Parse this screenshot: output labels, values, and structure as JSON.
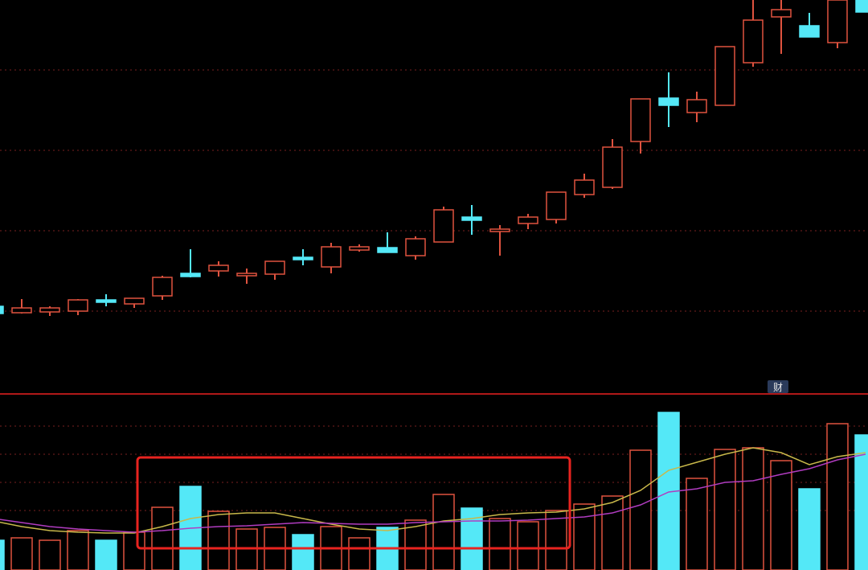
{
  "chart_data": [
    {
      "type": "candlestick",
      "annotation": "财",
      "ylim": [
        0,
        490
      ],
      "up_color": "#e0533f",
      "down_color": "#54e8f7",
      "open": [
        109,
        101,
        102,
        103,
        117,
        112,
        122,
        150,
        153,
        147,
        149,
        170,
        158,
        179,
        182,
        172,
        189,
        220,
        202,
        212,
        217,
        248,
        257,
        314,
        368,
        350,
        359,
        412,
        469,
        458,
        437,
        490
      ],
      "high": [
        110,
        118,
        109,
        118,
        124,
        119,
        147,
        180,
        165,
        156,
        165,
        180,
        188,
        186,
        201,
        196,
        233,
        235,
        210,
        224,
        251,
        274,
        317,
        367,
        400,
        376,
        432,
        490,
        490,
        474,
        490,
        490
      ],
      "low": [
        100,
        100,
        97,
        98,
        109,
        107,
        117,
        145,
        146,
        137,
        142,
        160,
        150,
        177,
        176,
        167,
        189,
        198,
        172,
        205,
        212,
        244,
        255,
        299,
        332,
        338,
        359,
        407,
        423,
        444,
        430,
        475
      ],
      "close": [
        100,
        107,
        107,
        117,
        114,
        119,
        145,
        146,
        160,
        150,
        165,
        167,
        183,
        183,
        176,
        193,
        229,
        216,
        205,
        220,
        251,
        266,
        307,
        367,
        359,
        366,
        432,
        465,
        478,
        444,
        490,
        475
      ]
    },
    {
      "type": "bar",
      "ylim": [
        0,
        219
      ],
      "up_color": "#e0533f",
      "down_color": "#54e8f7",
      "values": [
        37,
        40,
        37,
        49,
        37,
        47,
        78,
        104,
        73,
        51,
        53,
        44,
        54,
        40,
        53,
        62,
        94,
        77,
        64,
        60,
        74,
        82,
        92,
        149,
        196,
        114,
        150,
        152,
        136,
        101,
        182,
        168
      ],
      "series": [
        {
          "color": "#c8b84a",
          "values": [
            61,
            54,
            49,
            47,
            46,
            46,
            54,
            64,
            69,
            71,
            71,
            64,
            57,
            51,
            49,
            54,
            61,
            64,
            69,
            71,
            72,
            76,
            84,
            99,
            124,
            134,
            144,
            152,
            146,
            131,
            141,
            146
          ]
        },
        {
          "color": "#b03cc0",
          "values": [
            64,
            59,
            54,
            51,
            49,
            47,
            49,
            52,
            54,
            55,
            57,
            59,
            58,
            57,
            57,
            59,
            60,
            61,
            61,
            62,
            64,
            66,
            71,
            81,
            97,
            101,
            109,
            111,
            119,
            126,
            137,
            144
          ]
        }
      ]
    }
  ]
}
